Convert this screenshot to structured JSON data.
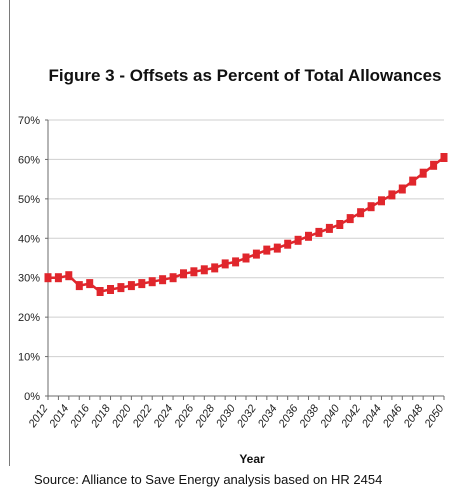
{
  "colors": {
    "series": "#e0262c",
    "gridline": "#cfcfcf",
    "axis": "#6b6b6b",
    "frame": "#7a7a7a",
    "background_tint": "#e6eef8"
  },
  "source_note": "Source: Alliance to Save Energy analysis based on HR 2454",
  "chart_data": {
    "type": "line",
    "title": "Figure 3  - Offsets as Percent of Total Allowances",
    "xlabel": "Year",
    "ylabel": "",
    "ylim": [
      0,
      70
    ],
    "y_ticks": [
      "0%",
      "10%",
      "20%",
      "30%",
      "40%",
      "50%",
      "60%",
      "70%"
    ],
    "x_tick_labels": [
      "2012",
      "2014",
      "2016",
      "2018",
      "2020",
      "2022",
      "2024",
      "2026",
      "2028",
      "2030",
      "2032",
      "2034",
      "2036",
      "2038",
      "2040",
      "2042",
      "2044",
      "2046",
      "2048",
      "2050"
    ],
    "grid": true,
    "legend": "none",
    "x": [
      2012,
      2013,
      2014,
      2015,
      2016,
      2017,
      2018,
      2019,
      2020,
      2021,
      2022,
      2023,
      2024,
      2025,
      2026,
      2027,
      2028,
      2029,
      2030,
      2031,
      2032,
      2033,
      2034,
      2035,
      2036,
      2037,
      2038,
      2039,
      2040,
      2041,
      2042,
      2043,
      2044,
      2045,
      2046,
      2047,
      2048,
      2049,
      2050
    ],
    "series": [
      {
        "values": [
          30,
          30,
          30.5,
          28,
          28.5,
          26.5,
          27,
          27.5,
          28,
          28.5,
          29,
          29.5,
          30,
          31,
          31.5,
          32,
          32.5,
          33.5,
          34,
          35,
          36,
          37,
          37.5,
          38.5,
          39.5,
          40.5,
          41.5,
          42.5,
          43.5,
          45,
          46.5,
          48,
          49.5,
          51,
          52.5,
          54.5,
          56.5,
          58.5,
          60.5
        ]
      }
    ]
  }
}
